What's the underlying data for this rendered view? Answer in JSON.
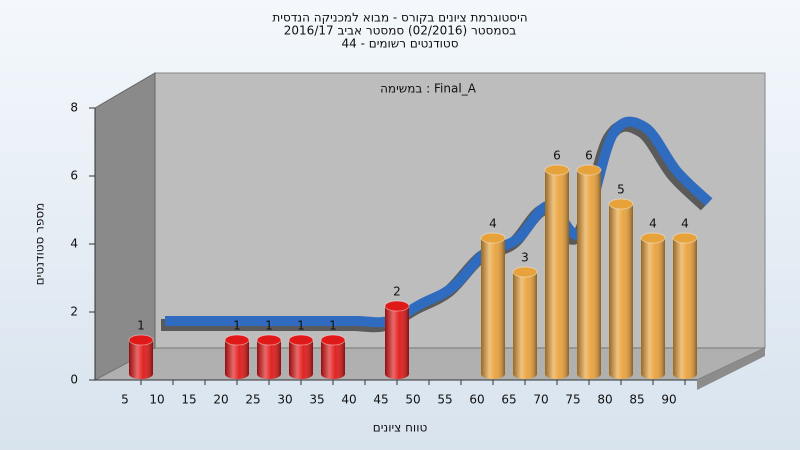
{
  "chart_data": {
    "type": "bar",
    "title": "היסטוגרמת ציונים בקורס - מבוא למכניקה הנדסית",
    "subtitle": "בסמסטר (02/2016) סמסטר אביב 2016/17",
    "subtitle2": "סטודנטים רשומים - 44",
    "annotation": "במשימה : Final_A",
    "x_label": "טווח ציונים",
    "y_label": "מספר סטודנטים",
    "categories": [
      5,
      10,
      15,
      20,
      25,
      30,
      35,
      40,
      45,
      50,
      55,
      60,
      65,
      70,
      75,
      80,
      85,
      90
    ],
    "values": [
      1,
      0,
      0,
      1,
      1,
      1,
      1,
      0,
      2,
      0,
      0,
      4,
      3,
      6,
      6,
      5,
      4,
      4
    ],
    "colors": [
      "#e01818",
      "#e01818",
      "#e01818",
      "#e01818",
      "#e01818",
      "#e01818",
      "#e01818",
      "#e01818",
      "#e01818",
      "#e01818",
      "#e01818",
      "#e8a23a",
      "#e8a23a",
      "#e8a23a",
      "#e8a23a",
      "#e8a23a",
      "#e8a23a",
      "#e8a23a"
    ],
    "trend": {
      "color": "#2f6cc0",
      "values": [
        1,
        1,
        1,
        1,
        1,
        1,
        1,
        1,
        1.5,
        2,
        3,
        3.4,
        4.4,
        3.6,
        6.5,
        6.7,
        5.4,
        4.5
      ]
    },
    "ylim": [
      0,
      8
    ],
    "yticks": [
      0,
      2,
      4,
      6,
      8
    ],
    "grid": false
  }
}
